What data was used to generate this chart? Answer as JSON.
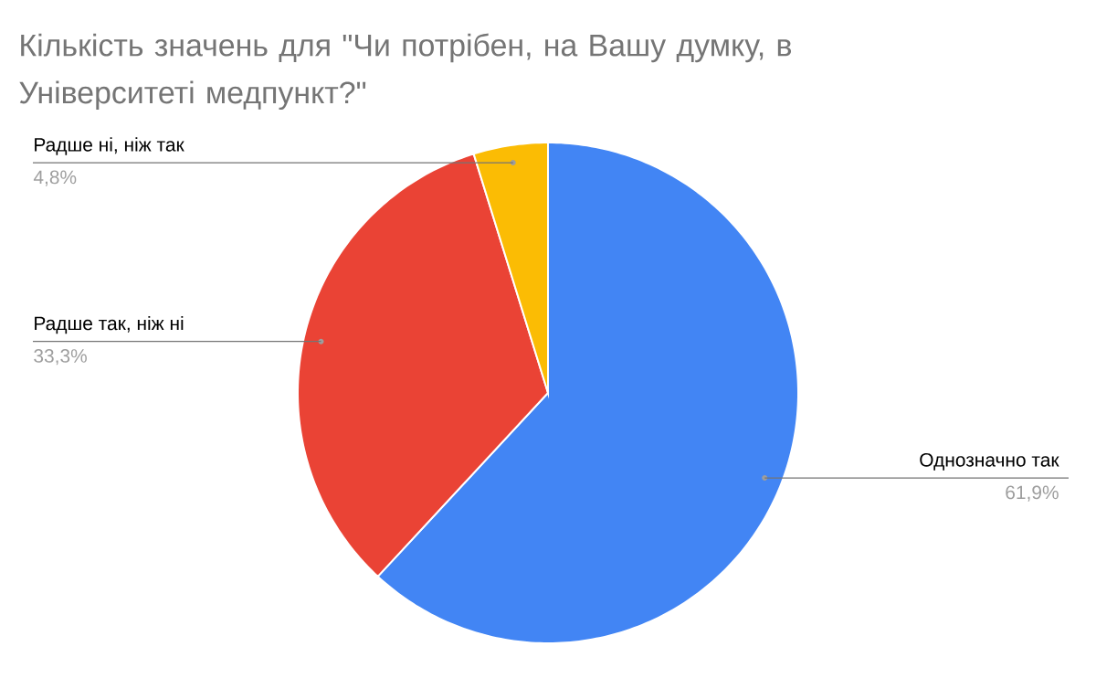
{
  "chart_data": {
    "type": "pie",
    "title": "Кількість значень для \"Чи потрібен, на Вашу думку, в Університеті медпункт?\"",
    "categories": [
      "Однозначно так",
      "Радше так, ніж ні",
      "Радше ні, ніж так"
    ],
    "values": [
      61.9,
      33.3,
      4.8
    ],
    "colors": [
      "#4285f4",
      "#ea4335",
      "#fbbc04"
    ],
    "value_labels": [
      "61,9%",
      "33,3%",
      "4,8%"
    ]
  }
}
